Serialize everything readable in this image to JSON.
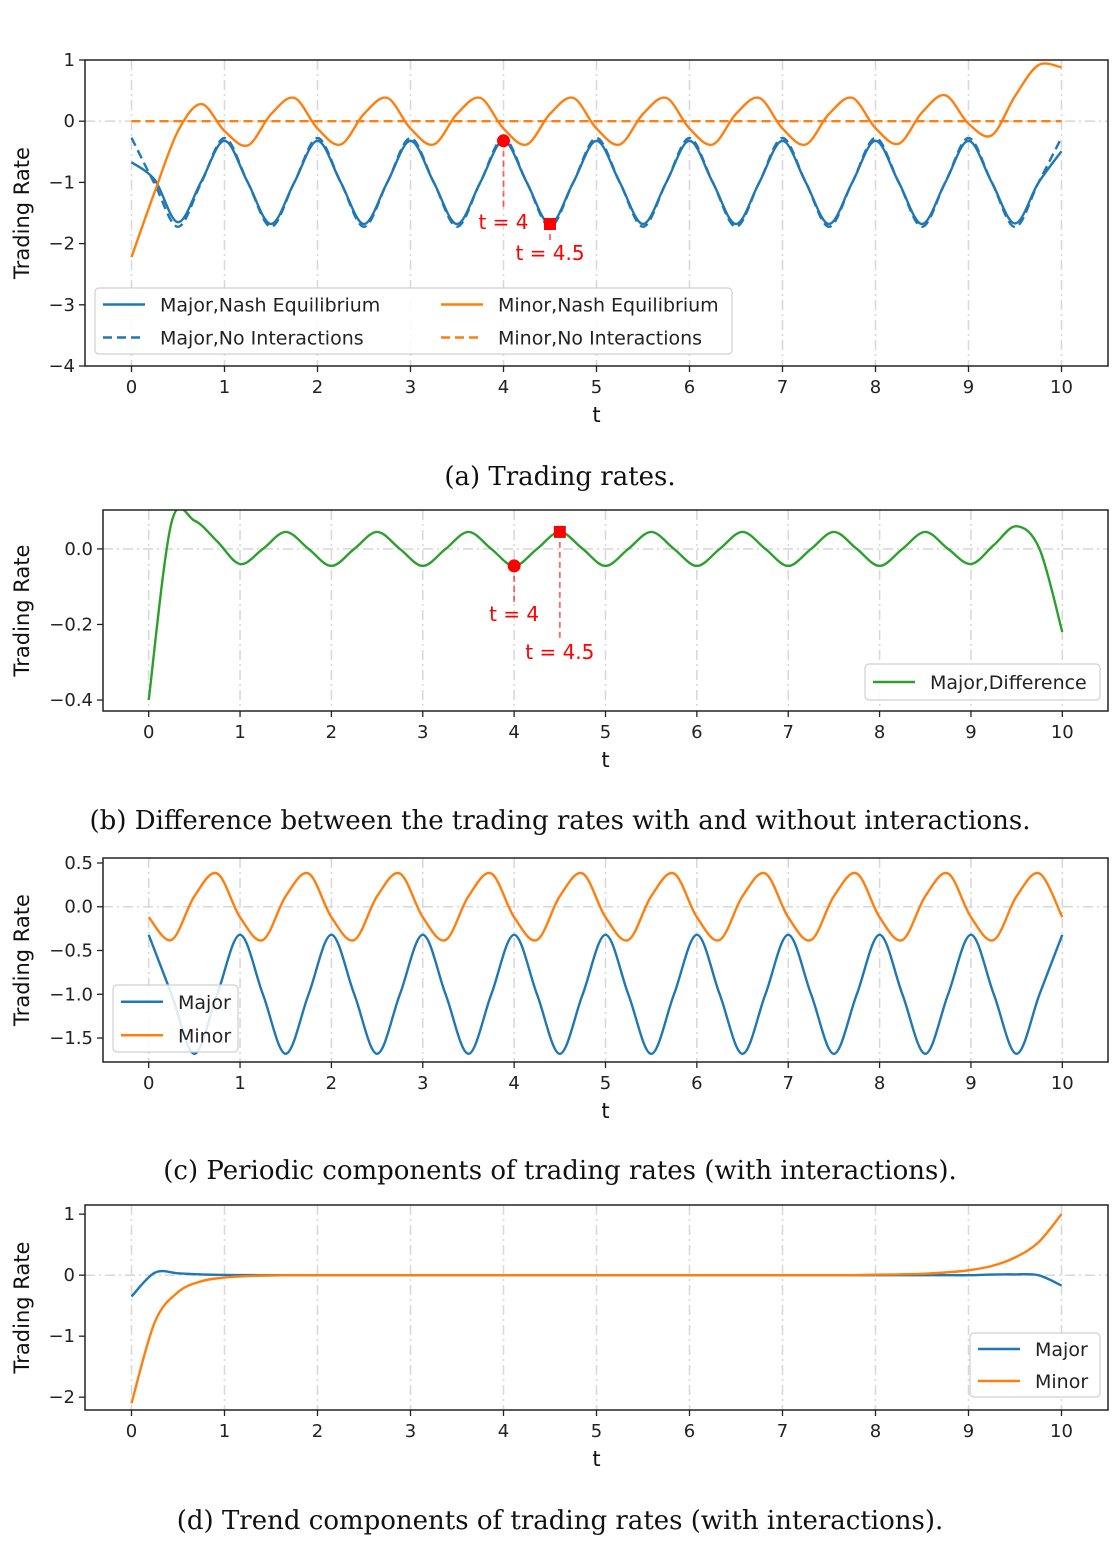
{
  "chart_data": [
    {
      "type": "line",
      "caption": "(a) Trading rates.",
      "xlabel": "t",
      "ylabel": "Trading Rate",
      "xlim": [
        -0.5,
        10.5
      ],
      "ylim": [
        -4,
        1
      ],
      "xticks": [
        "0",
        "1",
        "2",
        "3",
        "4",
        "5",
        "6",
        "7",
        "8",
        "9",
        "10"
      ],
      "yticks": [
        {
          "v": 1,
          "label": "1"
        },
        {
          "v": 0,
          "label": "0"
        },
        {
          "v": -1,
          "label": "−1"
        },
        {
          "v": -2,
          "label": "−2"
        },
        {
          "v": -3,
          "label": "−3"
        },
        {
          "v": -4,
          "label": "−4"
        }
      ],
      "grid": "dash-dot lines at integer t and y = 0",
      "legend": "lower-left",
      "x": [
        0,
        0.25,
        0.5,
        0.75,
        1,
        1.25,
        1.5,
        1.75,
        2,
        2.25,
        2.5,
        2.75,
        3,
        3.25,
        3.5,
        3.75,
        4,
        4.25,
        4.5,
        4.75,
        5,
        5.25,
        5.5,
        5.75,
        6,
        6.25,
        6.5,
        6.75,
        7,
        7.25,
        7.5,
        7.75,
        8,
        8.25,
        8.5,
        8.75,
        9,
        9.25,
        9.5,
        9.75,
        10
      ],
      "series": [
        {
          "name": "Major,Nash Equilibrium",
          "color": "#1f77b4",
          "style": "solid",
          "values": [
            -0.67,
            -0.96,
            -1.65,
            -0.985,
            -0.32,
            -1.0,
            -1.68,
            -1.0,
            -0.32,
            -1.0,
            -1.68,
            -1.0,
            -0.32,
            -1.0,
            -1.68,
            -1.0,
            -0.32,
            -1.0,
            -1.68,
            -1.0,
            -0.32,
            -1.0,
            -1.68,
            -1.0,
            -0.32,
            -1.0,
            -1.68,
            -1.0,
            -0.32,
            -1.0,
            -1.68,
            -1.0,
            -0.32,
            -1.0,
            -1.68,
            -1.0,
            -0.32,
            -1.0,
            -1.67,
            -1.01,
            -0.49
          ]
        },
        {
          "name": "Major,No Interactions",
          "color": "#1f77b4",
          "style": "dashed",
          "values": [
            -0.27,
            -1.03,
            -1.725,
            -1.005,
            -0.275,
            -1.0,
            -1.725,
            -1.0,
            -0.275,
            -1.0,
            -1.725,
            -1.0,
            -0.275,
            -1.0,
            -1.725,
            -1.0,
            -0.275,
            -1.0,
            -1.725,
            -1.0,
            -0.275,
            -1.0,
            -1.725,
            -1.0,
            -0.275,
            -1.0,
            -1.725,
            -1.0,
            -0.275,
            -1.0,
            -1.725,
            -1.0,
            -0.275,
            -1.0,
            -1.725,
            -1.0,
            -0.275,
            -1.0,
            -1.73,
            -1.01,
            -0.27
          ]
        },
        {
          "name": "Minor,Nash Equilibrium",
          "color": "#ff7f0e",
          "style": "solid",
          "values": [
            -2.22,
            -1.15,
            -0.16,
            0.28,
            -0.16,
            -0.395,
            0.115,
            0.38,
            -0.12,
            -0.38,
            0.12,
            0.38,
            -0.12,
            -0.38,
            0.12,
            0.38,
            -0.12,
            -0.38,
            0.12,
            0.38,
            -0.12,
            -0.38,
            0.12,
            0.38,
            -0.12,
            -0.38,
            0.12,
            0.38,
            -0.12,
            -0.38,
            0.12,
            0.38,
            -0.113,
            -0.367,
            0.143,
            0.424,
            -0.04,
            -0.23,
            0.41,
            0.915,
            0.88
          ]
        },
        {
          "name": "Minor,No Interactions",
          "color": "#ff7f0e",
          "style": "dashed",
          "values": [
            0,
            0,
            0,
            0,
            0,
            0,
            0,
            0,
            0,
            0,
            0,
            0,
            0,
            0,
            0,
            0,
            0,
            0,
            0,
            0,
            0,
            0,
            0,
            0,
            0,
            0,
            0,
            0,
            0,
            0,
            0,
            0,
            0,
            0,
            0,
            0,
            0,
            0,
            0,
            0,
            0
          ]
        }
      ],
      "annotations": [
        {
          "t": 4,
          "y": -0.32,
          "marker": "circle",
          "label": "t = 4",
          "color": "#ff0000"
        },
        {
          "t": 4.5,
          "y": -1.68,
          "marker": "square",
          "label": "t = 4.5",
          "color": "#ff0000"
        }
      ]
    },
    {
      "type": "line",
      "caption": "(b) Difference between the trading rates with and without interactions.",
      "xlabel": "t",
      "ylabel": "Trading Rate",
      "xlim": [
        -0.5,
        10.5
      ],
      "ylim": [
        -0.429,
        0.103
      ],
      "xticks": [
        "0",
        "1",
        "2",
        "3",
        "4",
        "5",
        "6",
        "7",
        "8",
        "9",
        "10"
      ],
      "yticks": [
        {
          "v": 0,
          "label": "0.0"
        },
        {
          "v": -0.2,
          "label": "−0.2"
        },
        {
          "v": -0.4,
          "label": "−0.4"
        }
      ],
      "grid": "dash-dot lines at integer t and y = 0",
      "legend": "lower-right",
      "x": [
        0,
        0.25,
        0.5,
        0.75,
        1,
        1.25,
        1.5,
        1.75,
        2,
        2.25,
        2.5,
        2.75,
        3,
        3.25,
        3.5,
        3.75,
        4,
        4.25,
        4.5,
        4.75,
        5,
        5.25,
        5.5,
        5.75,
        6,
        6.25,
        6.5,
        6.75,
        7,
        7.25,
        7.5,
        7.75,
        8,
        8.25,
        8.5,
        8.75,
        9,
        9.25,
        9.5,
        9.75,
        10
      ],
      "series": [
        {
          "name": "Major,Difference",
          "color": "#2ca02c",
          "style": "solid",
          "values": [
            -0.4,
            0.07,
            0.075,
            0.02,
            -0.04,
            0.0,
            0.045,
            0.0,
            -0.045,
            0,
            0.045,
            0,
            -0.045,
            0,
            0.045,
            0,
            -0.045,
            0,
            0.045,
            0,
            -0.045,
            0,
            0.045,
            0,
            -0.045,
            0,
            0.045,
            0,
            -0.045,
            0,
            0.045,
            0,
            -0.045,
            0,
            0.045,
            0,
            -0.04,
            0.01,
            0.06,
            0.0,
            -0.22
          ]
        }
      ],
      "annotations": [
        {
          "t": 4,
          "y": -0.045,
          "marker": "circle",
          "label": "t = 4",
          "color": "#ff0000"
        },
        {
          "t": 4.5,
          "y": 0.045,
          "marker": "square",
          "label": "t = 4.5",
          "color": "#ff0000"
        }
      ]
    },
    {
      "type": "line",
      "caption": "(c) Periodic components of trading rates (with interactions).",
      "xlabel": "t",
      "ylabel": "Trading Rate",
      "xlim": [
        -0.5,
        10.5
      ],
      "ylim": [
        -1.774,
        0.557
      ],
      "xticks": [
        "0",
        "1",
        "2",
        "3",
        "4",
        "5",
        "6",
        "7",
        "8",
        "9",
        "10"
      ],
      "yticks": [
        {
          "v": 0.5,
          "label": "0.5"
        },
        {
          "v": 0,
          "label": "0.0"
        },
        {
          "v": -0.5,
          "label": "−0.5"
        },
        {
          "v": -1,
          "label": "−1.0"
        },
        {
          "v": -1.5,
          "label": "−1.5"
        }
      ],
      "grid": "dash-dot lines at integer t and y = 0",
      "legend": "lower-left",
      "x": [
        0,
        0.25,
        0.5,
        0.75,
        1,
        1.25,
        1.5,
        1.75,
        2,
        2.25,
        2.5,
        2.75,
        3,
        3.25,
        3.5,
        3.75,
        4,
        4.25,
        4.5,
        4.75,
        5,
        5.25,
        5.5,
        5.75,
        6,
        6.25,
        6.5,
        6.75,
        7,
        7.25,
        7.5,
        7.75,
        8,
        8.25,
        8.5,
        8.75,
        9,
        9.25,
        9.5,
        9.75,
        10
      ],
      "series": [
        {
          "name": "Major",
          "color": "#1f77b4",
          "style": "solid",
          "values": [
            -0.32,
            -1.0,
            -1.68,
            -1.0,
            -0.32,
            -1.0,
            -1.68,
            -1.0,
            -0.32,
            -1.0,
            -1.68,
            -1.0,
            -0.32,
            -1.0,
            -1.68,
            -1.0,
            -0.32,
            -1.0,
            -1.68,
            -1.0,
            -0.32,
            -1.0,
            -1.68,
            -1.0,
            -0.32,
            -1.0,
            -1.68,
            -1.0,
            -0.32,
            -1.0,
            -1.68,
            -1.0,
            -0.32,
            -1.0,
            -1.68,
            -1.0,
            -0.32,
            -1.0,
            -1.68,
            -1.0,
            -0.32
          ]
        },
        {
          "name": "Minor",
          "color": "#ff7f0e",
          "style": "solid",
          "values": [
            -0.12,
            -0.38,
            0.12,
            0.38,
            -0.12,
            -0.38,
            0.12,
            0.38,
            -0.12,
            -0.38,
            0.12,
            0.38,
            -0.12,
            -0.38,
            0.12,
            0.38,
            -0.12,
            -0.38,
            0.12,
            0.38,
            -0.12,
            -0.38,
            0.12,
            0.38,
            -0.12,
            -0.38,
            0.12,
            0.38,
            -0.12,
            -0.38,
            0.12,
            0.38,
            -0.12,
            -0.38,
            0.12,
            0.38,
            -0.12,
            -0.38,
            0.12,
            0.38,
            -0.12
          ]
        }
      ],
      "annotations": []
    },
    {
      "type": "line",
      "caption": "(d) Trend components of trading rates (with interactions).",
      "xlabel": "t",
      "ylabel": "Trading Rate",
      "xlim": [
        -0.5,
        10.5
      ],
      "ylim": [
        -2.21,
        1.15
      ],
      "xticks": [
        "0",
        "1",
        "2",
        "3",
        "4",
        "5",
        "6",
        "7",
        "8",
        "9",
        "10"
      ],
      "yticks": [
        {
          "v": 1,
          "label": "1"
        },
        {
          "v": 0,
          "label": "0"
        },
        {
          "v": -1,
          "label": "−1"
        },
        {
          "v": -2,
          "label": "−2"
        }
      ],
      "grid": "dash-dot lines at integer t and y = 0",
      "legend": "lower-right",
      "x": [
        0,
        0.25,
        0.5,
        0.75,
        1,
        1.25,
        1.5,
        1.75,
        2,
        2.25,
        2.5,
        2.75,
        3,
        3.25,
        3.5,
        3.75,
        4,
        4.25,
        4.5,
        4.75,
        5,
        5.25,
        5.5,
        5.75,
        6,
        6.25,
        6.5,
        6.75,
        7,
        7.25,
        7.5,
        7.75,
        8,
        8.25,
        8.5,
        8.75,
        9,
        9.25,
        9.5,
        9.75,
        10
      ],
      "series": [
        {
          "name": "Major",
          "color": "#1f77b4",
          "style": "solid",
          "values": [
            -0.35,
            0.04,
            0.03,
            0.012,
            0.004,
            0.001,
            0,
            0,
            0,
            0,
            0,
            0,
            0,
            0,
            0,
            0,
            0,
            0,
            0,
            0,
            0,
            0,
            0,
            0,
            0,
            0,
            0,
            0,
            0,
            0,
            0,
            0,
            0,
            0,
            0,
            0,
            0,
            0.01,
            0.012,
            0.0,
            -0.17
          ]
        },
        {
          "name": "Minor",
          "color": "#ff7f0e",
          "style": "solid",
          "values": [
            -2.1,
            -0.77,
            -0.28,
            -0.1,
            -0.04,
            -0.015,
            -0.005,
            0,
            0,
            0,
            0,
            0,
            0,
            0,
            0,
            0,
            0,
            0,
            0,
            0,
            0,
            0,
            0,
            0,
            0,
            0,
            0,
            0,
            0,
            0,
            0,
            0,
            0.007,
            0.013,
            0.023,
            0.044,
            0.08,
            0.15,
            0.29,
            0.535,
            1.0
          ]
        }
      ],
      "annotations": []
    }
  ]
}
